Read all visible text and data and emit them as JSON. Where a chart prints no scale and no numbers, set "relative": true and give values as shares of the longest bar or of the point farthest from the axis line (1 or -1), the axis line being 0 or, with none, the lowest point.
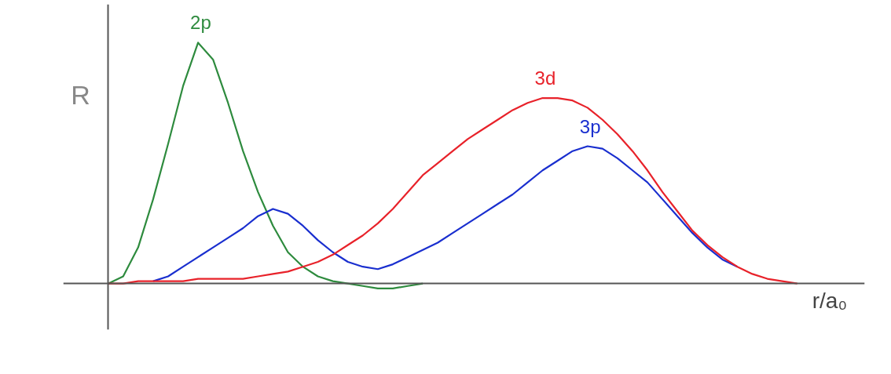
{
  "chart_data": {
    "type": "line",
    "relative": true,
    "ylabel": "R",
    "xlabel": "r/a₀",
    "categories": [
      null,
      null,
      null,
      null,
      null,
      null,
      null,
      null,
      null,
      null,
      null,
      null,
      null,
      null,
      null,
      null,
      null,
      null,
      null,
      null,
      null,
      null,
      null,
      null,
      null,
      null,
      null,
      null,
      null,
      null,
      null,
      null,
      null,
      null,
      null,
      null,
      null,
      null,
      null,
      null,
      null,
      null,
      null,
      null,
      null,
      null,
      null
    ],
    "series": [
      {
        "name": "2p",
        "color": "#2e8b3e",
        "values": [
          0,
          0.03,
          0.15,
          0.35,
          0.58,
          0.82,
          1.0,
          0.93,
          0.75,
          0.55,
          0.38,
          0.24,
          0.13,
          0.07,
          0.03,
          0.01,
          0,
          -0.01,
          -0.02,
          -0.02,
          -0.01,
          0,
          null,
          null,
          null,
          null,
          null,
          null,
          null,
          null,
          null,
          null,
          null,
          null,
          null,
          null,
          null,
          null,
          null,
          null,
          null,
          null,
          null,
          null,
          null,
          null,
          null
        ]
      },
      {
        "name": "3p",
        "color": "#1a2fcf",
        "values": [
          null,
          null,
          null,
          0.01,
          0.03,
          0.07,
          0.11,
          0.15,
          0.19,
          0.23,
          0.28,
          0.31,
          0.29,
          0.24,
          0.18,
          0.13,
          0.09,
          0.07,
          0.06,
          0.08,
          0.11,
          0.14,
          0.17,
          0.21,
          0.25,
          0.29,
          0.33,
          0.37,
          0.42,
          0.47,
          0.51,
          0.55,
          0.57,
          0.56,
          0.52,
          0.47,
          0.42,
          0.35,
          0.28,
          0.21,
          0.15,
          0.1,
          0.07,
          null,
          null,
          null,
          null
        ]
      },
      {
        "name": "3d",
        "color": "#e8222a",
        "values": [
          0,
          0,
          0.01,
          0.01,
          0.01,
          0.01,
          0.02,
          0.02,
          0.02,
          0.02,
          0.03,
          0.04,
          0.05,
          0.07,
          0.09,
          0.12,
          0.16,
          0.2,
          0.25,
          0.31,
          0.38,
          0.45,
          0.5,
          0.55,
          0.6,
          0.64,
          0.68,
          0.72,
          0.75,
          0.77,
          0.77,
          0.76,
          0.73,
          0.68,
          0.62,
          0.55,
          0.47,
          0.38,
          0.3,
          0.22,
          0.16,
          0.11,
          0.07,
          0.04,
          0.02,
          0.01,
          0
        ]
      }
    ]
  }
}
